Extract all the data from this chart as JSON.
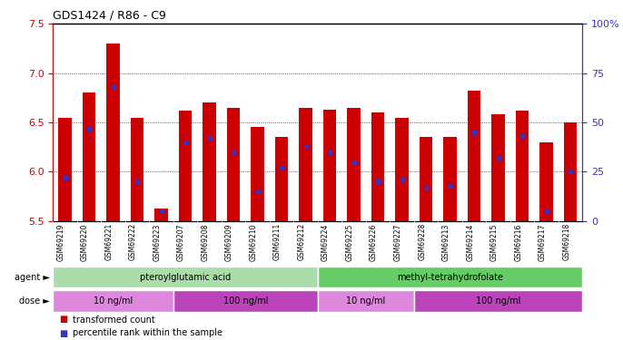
{
  "title": "GDS1424 / R86 - C9",
  "samples": [
    "GSM69219",
    "GSM69220",
    "GSM69221",
    "GSM69222",
    "GSM69223",
    "GSM69207",
    "GSM69208",
    "GSM69209",
    "GSM69210",
    "GSM69211",
    "GSM69212",
    "GSM69224",
    "GSM69225",
    "GSM69226",
    "GSM69227",
    "GSM69228",
    "GSM69213",
    "GSM69214",
    "GSM69215",
    "GSM69216",
    "GSM69217",
    "GSM69218"
  ],
  "bar_values": [
    6.55,
    6.8,
    7.3,
    6.55,
    5.63,
    6.62,
    6.7,
    6.65,
    6.45,
    6.35,
    6.65,
    6.63,
    6.65,
    6.6,
    6.55,
    6.35,
    6.35,
    6.82,
    6.58,
    6.62,
    6.3,
    6.5
  ],
  "percentile_ranks": [
    22,
    47,
    68,
    20,
    5,
    40,
    42,
    35,
    15,
    27,
    38,
    35,
    30,
    20,
    21,
    17,
    18,
    45,
    32,
    43,
    5,
    25
  ],
  "bar_color": "#cc0000",
  "marker_color": "#3333cc",
  "ymin": 5.5,
  "ymax": 7.5,
  "yticks": [
    5.5,
    6.0,
    6.5,
    7.0,
    7.5
  ],
  "right_yticks": [
    0,
    25,
    50,
    75,
    100
  ],
  "right_yticklabels": [
    "0",
    "25",
    "50",
    "75",
    "100%"
  ],
  "agent_groups": [
    {
      "label": "pteroylglutamic acid",
      "start": 0,
      "end": 11,
      "color": "#aaddaa"
    },
    {
      "label": "methyl-tetrahydrofolate",
      "start": 11,
      "end": 22,
      "color": "#66cc66"
    }
  ],
  "dose_groups": [
    {
      "label": "10 ng/ml",
      "start": 0,
      "end": 5,
      "color": "#dd88dd"
    },
    {
      "label": "100 ng/ml",
      "start": 5,
      "end": 11,
      "color": "#bb44bb"
    },
    {
      "label": "10 ng/ml",
      "start": 11,
      "end": 15,
      "color": "#dd88dd"
    },
    {
      "label": "100 ng/ml",
      "start": 15,
      "end": 22,
      "color": "#bb44bb"
    }
  ],
  "agent_label": "agent",
  "dose_label": "dose",
  "legend_items": [
    {
      "label": "transformed count",
      "color": "#cc0000"
    },
    {
      "label": "percentile rank within the sample",
      "color": "#3333cc"
    }
  ],
  "bar_width": 0.55,
  "bg_color": "#ffffff",
  "tick_color_left": "#cc0000",
  "tick_color_right": "#3333cc",
  "xtick_bg": "#d0d0d0"
}
